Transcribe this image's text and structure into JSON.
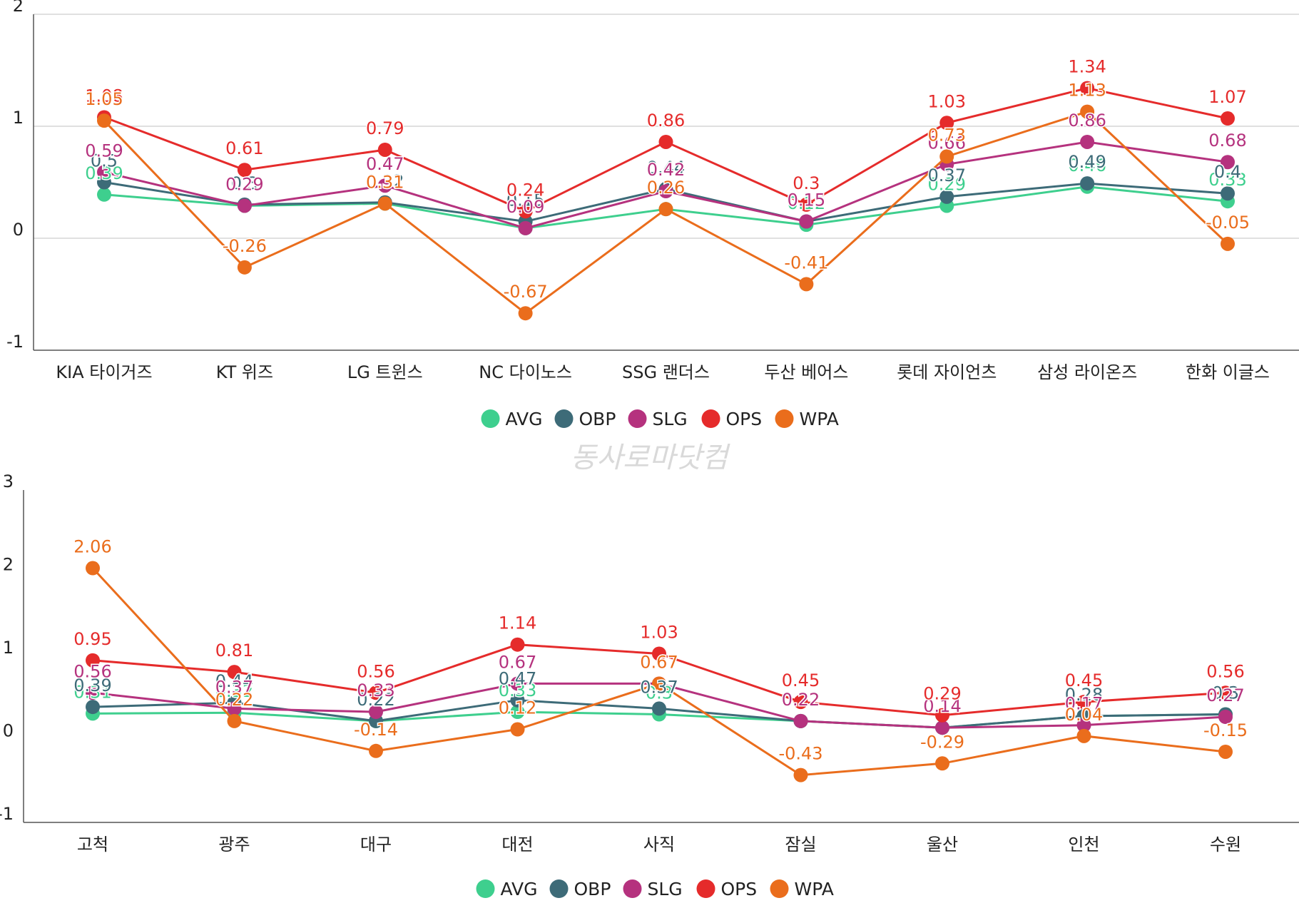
{
  "watermark": "동사로마닷컴",
  "chart_data": [
    {
      "type": "line",
      "categories": [
        "KIA 타이거즈",
        "KT 위즈",
        "LG 트윈스",
        "NC 다이노스",
        "SSG 랜더스",
        "두산 베어스",
        "롯데 자이언츠",
        "삼성 라이온즈",
        "한화 이글스"
      ],
      "ylim": [
        -1,
        2
      ],
      "yticks": [
        -1,
        0,
        1,
        2
      ],
      "grid": true,
      "legend": "bottom-center",
      "series": [
        {
          "name": "AVG",
          "color": "#3ecf8e",
          "values": [
            0.39,
            0.29,
            0.31,
            0.09,
            0.26,
            0.12,
            0.29,
            0.46,
            0.33
          ]
        },
        {
          "name": "OBP",
          "color": "#3d6b78",
          "values": [
            0.5,
            0.3,
            0.32,
            0.15,
            0.44,
            0.15,
            0.37,
            0.49,
            0.4
          ]
        },
        {
          "name": "SLG",
          "color": "#b5327e",
          "values": [
            0.59,
            0.29,
            0.47,
            0.09,
            0.42,
            0.15,
            0.66,
            0.86,
            0.68
          ]
        },
        {
          "name": "OPS",
          "color": "#e52b2b",
          "values": [
            1.08,
            0.61,
            0.79,
            0.24,
            0.86,
            0.3,
            1.03,
            1.34,
            1.07
          ]
        },
        {
          "name": "WPA",
          "color": "#ea6d1c",
          "values": [
            1.05,
            -0.26,
            0.31,
            -0.67,
            0.26,
            -0.41,
            0.73,
            1.13,
            -0.05
          ]
        }
      ]
    },
    {
      "type": "line",
      "categories": [
        "고척",
        "광주",
        "대구",
        "대전",
        "사직",
        "잠실",
        "울산",
        "인천",
        "수원"
      ],
      "ylim": [
        -1,
        3
      ],
      "yticks": [
        -1,
        0,
        1,
        2,
        3
      ],
      "grid": false,
      "legend": "bottom-center",
      "series": [
        {
          "name": "AVG",
          "color": "#3ecf8e",
          "values": [
            0.31,
            0.32,
            0.22,
            0.33,
            0.3,
            0.22,
            0.14,
            0.28,
            0.3
          ]
        },
        {
          "name": "OBP",
          "color": "#3d6b78",
          "values": [
            0.39,
            0.44,
            0.22,
            0.47,
            0.37,
            0.22,
            0.14,
            0.28,
            0.3
          ]
        },
        {
          "name": "SLG",
          "color": "#b5327e",
          "values": [
            0.56,
            0.37,
            0.33,
            0.67,
            0.67,
            0.22,
            0.14,
            0.17,
            0.27
          ]
        },
        {
          "name": "OPS",
          "color": "#e52b2b",
          "values": [
            0.95,
            0.81,
            0.56,
            1.14,
            1.03,
            0.45,
            0.29,
            0.45,
            0.56
          ]
        },
        {
          "name": "WPA",
          "color": "#ea6d1c",
          "values": [
            2.06,
            0.22,
            -0.14,
            0.12,
            0.67,
            -0.43,
            -0.29,
            0.04,
            -0.15
          ]
        }
      ]
    }
  ]
}
